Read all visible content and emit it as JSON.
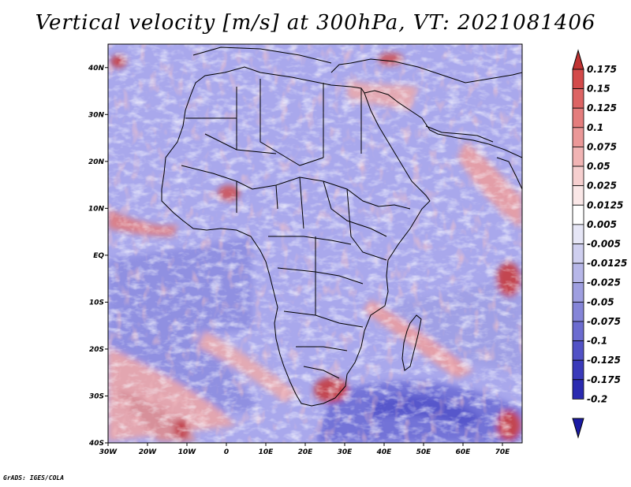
{
  "title": "Vertical velocity [m/s] at 300hPa, VT: 2021081406",
  "credit": "GrADS: IGES/COLA",
  "map": {
    "lon_range": [
      -30,
      75
    ],
    "lat_range": [
      -40,
      45
    ],
    "lon_ticks": [
      {
        "value": -30,
        "label": "30W"
      },
      {
        "value": -20,
        "label": "20W"
      },
      {
        "value": -10,
        "label": "10W"
      },
      {
        "value": 0,
        "label": "0"
      },
      {
        "value": 10,
        "label": "10E"
      },
      {
        "value": 20,
        "label": "20E"
      },
      {
        "value": 30,
        "label": "30E"
      },
      {
        "value": 40,
        "label": "40E"
      },
      {
        "value": 50,
        "label": "50E"
      },
      {
        "value": 60,
        "label": "60E"
      },
      {
        "value": 70,
        "label": "70E"
      }
    ],
    "lat_ticks": [
      {
        "value": 40,
        "label": "40N"
      },
      {
        "value": 30,
        "label": "30N"
      },
      {
        "value": 20,
        "label": "20N"
      },
      {
        "value": 10,
        "label": "10N"
      },
      {
        "value": 0,
        "label": "EQ"
      },
      {
        "value": -10,
        "label": "10S"
      },
      {
        "value": -20,
        "label": "20S"
      },
      {
        "value": -30,
        "label": "30S"
      },
      {
        "value": -40,
        "label": "40S"
      }
    ],
    "field_colors": {
      "base": "#a9a8ec",
      "ocean_blue": "#8c8ce0",
      "deep_blue": "#4a4ac6",
      "pink": "#ee9d9d",
      "red": "#c83434",
      "white": "#f3f3fb",
      "coast": "#000000"
    }
  },
  "colorbar": {
    "levels": [
      "0.175",
      "0.15",
      "0.125",
      "0.1",
      "0.075",
      "0.05",
      "0.025",
      "0.0125",
      "0.005",
      "-0.005",
      "-0.0125",
      "-0.025",
      "-0.05",
      "-0.075",
      "-0.1",
      "-0.125",
      "-0.175",
      "-0.2"
    ],
    "colors": [
      "#bf3232",
      "#d34a4a",
      "#dd6464",
      "#e47d7d",
      "#eb9898",
      "#f1b4b4",
      "#f6cfcf",
      "#fae7e7",
      "#ffffff",
      "#e6e6f6",
      "#cfcfef",
      "#b7b7e8",
      "#9f9fe0",
      "#8585d8",
      "#6c6cd0",
      "#5252c6",
      "#3a3aba",
      "#2a2ab0",
      "#1a1aa4"
    ]
  }
}
